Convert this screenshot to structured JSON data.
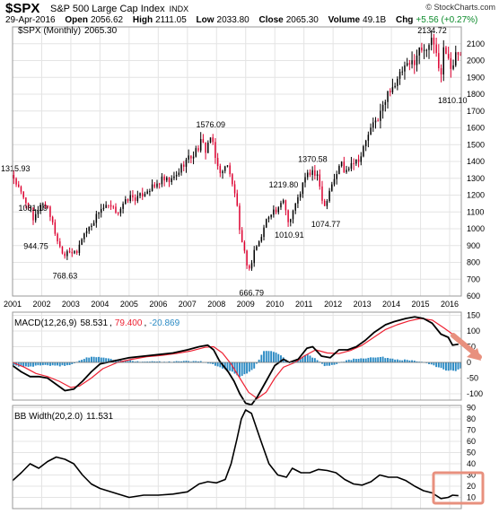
{
  "header": {
    "symbol": "$SPX",
    "name": "S&P 500 Large Cap Index",
    "exchange": "INDX",
    "copyright": "© StockCharts.com",
    "date": "29-Apr-2016",
    "open_label": "Open",
    "open": "2056.62",
    "high_label": "High",
    "high": "2111.05",
    "low_label": "Low",
    "low": "2033.80",
    "close_label": "Close",
    "close": "2065.30",
    "volume_label": "Volume",
    "volume": "49.1B",
    "chg_label": "Chg",
    "chg": "+5.56 (+0.27%)"
  },
  "colors": {
    "up": "#000000",
    "down": "#dd0030",
    "macd_line": "#000000",
    "signal_line": "#ee2233",
    "histogram": "#2a8ac4",
    "grid": "#e4e4e4",
    "annotation": "#e8907e",
    "hist_value": "#2a8ac4"
  },
  "chart_data": [
    {
      "type": "candlestick",
      "title": "$SPX (Monthly) 2065.30",
      "legend_label": "$SPX (Monthly)",
      "legend_value": "2065.30",
      "ylim": [
        600,
        2200
      ],
      "y_ticks": [
        600,
        700,
        800,
        900,
        1000,
        1100,
        1200,
        1300,
        1400,
        1500,
        1600,
        1700,
        1800,
        1900,
        2000,
        2100
      ],
      "x_ticks": [
        "2001",
        "2002",
        "2003",
        "2004",
        "2005",
        "2006",
        "2007",
        "2008",
        "2009",
        "2010",
        "2011",
        "2012",
        "2013",
        "2014",
        "2015",
        "2016"
      ],
      "x_range": [
        2001.0,
        2016.4
      ],
      "grid": true,
      "price_path": [
        [
          2001.0,
          1320
        ],
        [
          2001.2,
          1240
        ],
        [
          2001.4,
          1170
        ],
        [
          2001.6,
          1130
        ],
        [
          2001.7,
          1040
        ],
        [
          2001.8,
          1080
        ],
        [
          2001.95,
          1150
        ],
        [
          2002.2,
          1140
        ],
        [
          2002.4,
          1010
        ],
        [
          2002.6,
          900
        ],
        [
          2002.8,
          840
        ],
        [
          2002.9,
          885
        ],
        [
          2003.0,
          860
        ],
        [
          2003.2,
          850
        ],
        [
          2003.4,
          960
        ],
        [
          2003.6,
          1000
        ],
        [
          2003.8,
          1050
        ],
        [
          2004.0,
          1120
        ],
        [
          2004.3,
          1130
        ],
        [
          2004.6,
          1100
        ],
        [
          2004.8,
          1140
        ],
        [
          2005.0,
          1190
        ],
        [
          2005.3,
          1180
        ],
        [
          2005.6,
          1230
        ],
        [
          2005.9,
          1250
        ],
        [
          2006.1,
          1290
        ],
        [
          2006.4,
          1280
        ],
        [
          2006.6,
          1310
        ],
        [
          2006.9,
          1400
        ],
        [
          2007.2,
          1440
        ],
        [
          2007.5,
          1520
        ],
        [
          2007.6,
          1460
        ],
        [
          2007.8,
          1550
        ],
        [
          2007.9,
          1470
        ],
        [
          2008.0,
          1380
        ],
        [
          2008.2,
          1330
        ],
        [
          2008.4,
          1400
        ],
        [
          2008.5,
          1280
        ],
        [
          2008.7,
          1160
        ],
        [
          2008.8,
          960
        ],
        [
          2008.9,
          890
        ],
        [
          2009.0,
          830
        ],
        [
          2009.1,
          740
        ],
        [
          2009.2,
          800
        ],
        [
          2009.3,
          880
        ],
        [
          2009.5,
          930
        ],
        [
          2009.7,
          1050
        ],
        [
          2009.9,
          1110
        ],
        [
          2010.1,
          1100
        ],
        [
          2010.3,
          1180
        ],
        [
          2010.4,
          1090
        ],
        [
          2010.5,
          1030
        ],
        [
          2010.6,
          1100
        ],
        [
          2010.8,
          1180
        ],
        [
          2010.95,
          1260
        ],
        [
          2011.1,
          1320
        ],
        [
          2011.3,
          1340
        ],
        [
          2011.5,
          1290
        ],
        [
          2011.6,
          1200
        ],
        [
          2011.7,
          1130
        ],
        [
          2011.9,
          1250
        ],
        [
          2012.1,
          1320
        ],
        [
          2012.3,
          1400
        ],
        [
          2012.4,
          1320
        ],
        [
          2012.6,
          1400
        ],
        [
          2012.8,
          1410
        ],
        [
          2012.95,
          1430
        ],
        [
          2013.2,
          1560
        ],
        [
          2013.4,
          1620
        ],
        [
          2013.6,
          1680
        ],
        [
          2013.8,
          1760
        ],
        [
          2013.95,
          1840
        ],
        [
          2014.2,
          1870
        ],
        [
          2014.4,
          1950
        ],
        [
          2014.6,
          1960
        ],
        [
          2014.8,
          2010
        ],
        [
          2014.95,
          2060
        ],
        [
          2015.1,
          2080
        ],
        [
          2015.3,
          2100
        ],
        [
          2015.5,
          2100
        ],
        [
          2015.6,
          1970
        ],
        [
          2015.7,
          1920
        ],
        [
          2015.8,
          2080
        ],
        [
          2015.95,
          2040
        ],
        [
          2016.0,
          1940
        ],
        [
          2016.1,
          1930
        ],
        [
          2016.2,
          2060
        ],
        [
          2016.3,
          2065
        ]
      ],
      "annotations": [
        {
          "text": "1315.93",
          "x": 2001.1,
          "y": 1315.93
        },
        {
          "text": "1081.19",
          "x": 2001.7,
          "y": 1081.19
        },
        {
          "text": "944.75",
          "x": 2001.8,
          "y": 944.75
        },
        {
          "text": "768.63",
          "x": 2002.8,
          "y": 768.63
        },
        {
          "text": "1576.09",
          "x": 2007.8,
          "y": 1576.09
        },
        {
          "text": "666.79",
          "x": 2009.2,
          "y": 666.79
        },
        {
          "text": "1219.80",
          "x": 2010.3,
          "y": 1219.8
        },
        {
          "text": "1010.91",
          "x": 2010.5,
          "y": 1010.91
        },
        {
          "text": "1370.58",
          "x": 2011.3,
          "y": 1370.58
        },
        {
          "text": "1074.77",
          "x": 2011.75,
          "y": 1074.77
        },
        {
          "text": "2134.72",
          "x": 2015.4,
          "y": 2134.72
        },
        {
          "text": "1810.10",
          "x": 2016.1,
          "y": 1810.1
        }
      ]
    },
    {
      "type": "line",
      "title": "MACD(12,26,9) 58.531, 79.400, -20.869",
      "legend_label": "MACD(12,26,9)",
      "legend_macd": "58.531",
      "legend_signal": "79.400",
      "legend_hist": "-20.869",
      "ylim": [
        -120,
        160
      ],
      "y_ticks": [
        -100,
        -50,
        0,
        50,
        100,
        150
      ],
      "series": [
        {
          "key": "macd",
          "values": [
            [
              2001.0,
              -10
            ],
            [
              2001.3,
              -30
            ],
            [
              2001.6,
              -45
            ],
            [
              2001.9,
              -45
            ],
            [
              2002.2,
              -50
            ],
            [
              2002.5,
              -70
            ],
            [
              2002.8,
              -90
            ],
            [
              2003.1,
              -85
            ],
            [
              2003.4,
              -60
            ],
            [
              2003.7,
              -30
            ],
            [
              2004.0,
              -5
            ],
            [
              2004.5,
              5
            ],
            [
              2005.0,
              15
            ],
            [
              2005.5,
              20
            ],
            [
              2006.0,
              25
            ],
            [
              2006.5,
              30
            ],
            [
              2007.0,
              40
            ],
            [
              2007.4,
              50
            ],
            [
              2007.7,
              55
            ],
            [
              2007.9,
              40
            ],
            [
              2008.1,
              5
            ],
            [
              2008.4,
              -30
            ],
            [
              2008.6,
              -60
            ],
            [
              2008.8,
              -100
            ],
            [
              2009.0,
              -130
            ],
            [
              2009.2,
              -135
            ],
            [
              2009.4,
              -110
            ],
            [
              2009.7,
              -60
            ],
            [
              2010.0,
              -10
            ],
            [
              2010.3,
              10
            ],
            [
              2010.5,
              0
            ],
            [
              2010.8,
              10
            ],
            [
              2011.1,
              45
            ],
            [
              2011.3,
              50
            ],
            [
              2011.6,
              20
            ],
            [
              2011.9,
              15
            ],
            [
              2012.2,
              40
            ],
            [
              2012.5,
              40
            ],
            [
              2012.8,
              50
            ],
            [
              2013.1,
              70
            ],
            [
              2013.4,
              95
            ],
            [
              2013.8,
              120
            ],
            [
              2014.1,
              130
            ],
            [
              2014.5,
              140
            ],
            [
              2014.8,
              145
            ],
            [
              2015.1,
              140
            ],
            [
              2015.4,
              125
            ],
            [
              2015.7,
              90
            ],
            [
              2015.95,
              80
            ],
            [
              2016.1,
              55
            ],
            [
              2016.3,
              58
            ]
          ]
        },
        {
          "key": "signal",
          "values": [
            [
              2001.0,
              0
            ],
            [
              2001.4,
              -15
            ],
            [
              2001.8,
              -35
            ],
            [
              2002.2,
              -45
            ],
            [
              2002.6,
              -60
            ],
            [
              2003.0,
              -80
            ],
            [
              2003.3,
              -75
            ],
            [
              2003.7,
              -50
            ],
            [
              2004.1,
              -20
            ],
            [
              2004.6,
              0
            ],
            [
              2005.1,
              10
            ],
            [
              2005.6,
              18
            ],
            [
              2006.1,
              22
            ],
            [
              2006.6,
              28
            ],
            [
              2007.1,
              36
            ],
            [
              2007.6,
              48
            ],
            [
              2007.9,
              50
            ],
            [
              2008.2,
              30
            ],
            [
              2008.5,
              -5
            ],
            [
              2008.8,
              -50
            ],
            [
              2009.1,
              -95
            ],
            [
              2009.4,
              -115
            ],
            [
              2009.7,
              -95
            ],
            [
              2010.0,
              -50
            ],
            [
              2010.3,
              -15
            ],
            [
              2010.7,
              0
            ],
            [
              2011.0,
              20
            ],
            [
              2011.4,
              40
            ],
            [
              2011.8,
              30
            ],
            [
              2012.2,
              28
            ],
            [
              2012.6,
              38
            ],
            [
              2013.0,
              55
            ],
            [
              2013.4,
              80
            ],
            [
              2013.8,
              105
            ],
            [
              2014.2,
              120
            ],
            [
              2014.6,
              132
            ],
            [
              2015.0,
              140
            ],
            [
              2015.4,
              135
            ],
            [
              2015.8,
              110
            ],
            [
              2016.1,
              90
            ],
            [
              2016.3,
              79
            ]
          ]
        }
      ],
      "histogram": [
        [
          2001.0,
          -10
        ],
        [
          2001.5,
          -15
        ],
        [
          2002.0,
          -8
        ],
        [
          2002.5,
          -12
        ],
        [
          2003.0,
          -8
        ],
        [
          2003.5,
          15
        ],
        [
          2004.0,
          18
        ],
        [
          2004.5,
          8
        ],
        [
          2005.0,
          5
        ],
        [
          2005.5,
          3
        ],
        [
          2006.0,
          3
        ],
        [
          2006.5,
          3
        ],
        [
          2007.0,
          4
        ],
        [
          2007.5,
          3
        ],
        [
          2007.9,
          -8
        ],
        [
          2008.2,
          -20
        ],
        [
          2008.5,
          -28
        ],
        [
          2008.8,
          -45
        ],
        [
          2009.0,
          -38
        ],
        [
          2009.3,
          -18
        ],
        [
          2009.6,
          35
        ],
        [
          2009.9,
          38
        ],
        [
          2010.2,
          25
        ],
        [
          2010.5,
          0
        ],
        [
          2010.8,
          10
        ],
        [
          2011.1,
          25
        ],
        [
          2011.4,
          12
        ],
        [
          2011.7,
          -10
        ],
        [
          2012.0,
          -8
        ],
        [
          2012.4,
          5
        ],
        [
          2012.8,
          12
        ],
        [
          2013.2,
          15
        ],
        [
          2013.6,
          18
        ],
        [
          2014.0,
          12
        ],
        [
          2014.4,
          8
        ],
        [
          2014.8,
          6
        ],
        [
          2015.2,
          -3
        ],
        [
          2015.6,
          -15
        ],
        [
          2015.9,
          -25
        ],
        [
          2016.2,
          -28
        ],
        [
          2016.3,
          -21
        ]
      ]
    },
    {
      "type": "line",
      "title": "BB Width(20,2.0) 11.531",
      "legend_label": "BB Width(20,2.0)",
      "legend_value": "11.531",
      "ylim": [
        0,
        92
      ],
      "y_ticks": [
        10,
        20,
        30,
        40,
        50,
        60,
        70,
        80,
        90
      ],
      "values": [
        [
          2001.0,
          25
        ],
        [
          2001.3,
          32
        ],
        [
          2001.6,
          40
        ],
        [
          2001.9,
          36
        ],
        [
          2002.2,
          42
        ],
        [
          2002.5,
          46
        ],
        [
          2002.8,
          44
        ],
        [
          2003.1,
          40
        ],
        [
          2003.4,
          30
        ],
        [
          2003.7,
          22
        ],
        [
          2004.0,
          18
        ],
        [
          2004.5,
          14
        ],
        [
          2005.0,
          10
        ],
        [
          2005.5,
          12
        ],
        [
          2006.0,
          12
        ],
        [
          2006.5,
          13
        ],
        [
          2007.0,
          15
        ],
        [
          2007.4,
          22
        ],
        [
          2007.7,
          24
        ],
        [
          2008.0,
          23
        ],
        [
          2008.3,
          26
        ],
        [
          2008.5,
          40
        ],
        [
          2008.7,
          62
        ],
        [
          2008.85,
          80
        ],
        [
          2009.0,
          88
        ],
        [
          2009.2,
          85
        ],
        [
          2009.5,
          62
        ],
        [
          2009.8,
          40
        ],
        [
          2010.1,
          30
        ],
        [
          2010.4,
          28
        ],
        [
          2010.6,
          36
        ],
        [
          2010.9,
          32
        ],
        [
          2011.2,
          32
        ],
        [
          2011.5,
          35
        ],
        [
          2011.8,
          34
        ],
        [
          2012.1,
          32
        ],
        [
          2012.4,
          26
        ],
        [
          2012.7,
          22
        ],
        [
          2013.0,
          21
        ],
        [
          2013.3,
          24
        ],
        [
          2013.6,
          30
        ],
        [
          2013.9,
          28
        ],
        [
          2014.2,
          28
        ],
        [
          2014.5,
          25
        ],
        [
          2014.8,
          20
        ],
        [
          2015.1,
          16
        ],
        [
          2015.4,
          14
        ],
        [
          2015.7,
          9
        ],
        [
          2015.95,
          10
        ],
        [
          2016.1,
          12
        ],
        [
          2016.3,
          11.5
        ]
      ]
    }
  ]
}
